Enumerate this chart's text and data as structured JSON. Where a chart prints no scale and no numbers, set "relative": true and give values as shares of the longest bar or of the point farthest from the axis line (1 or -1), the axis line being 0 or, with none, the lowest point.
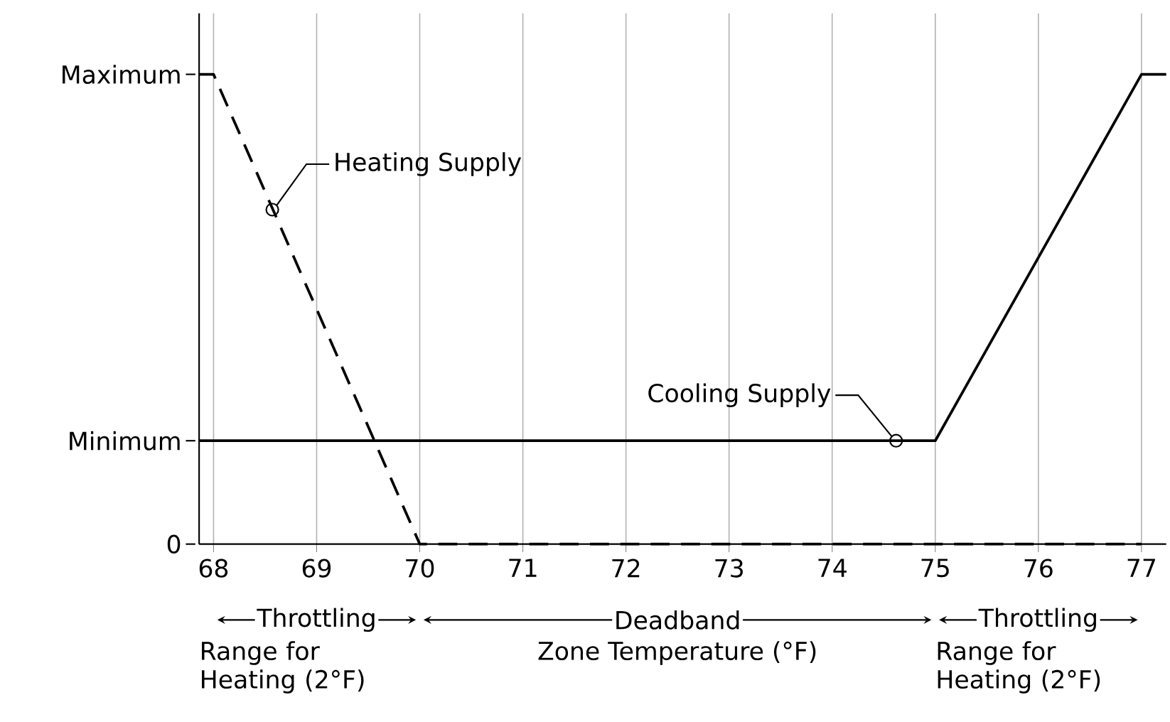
{
  "chart_data": {
    "type": "line",
    "relative": true,
    "xlabel": "Zone Temperature (°F)",
    "series": [
      {
        "color": "#000000",
        "line_style": "dashed",
        "x": [
          67.86,
          68,
          70,
          77
        ],
        "values": [
          1,
          1,
          0,
          0
        ]
      },
      {
        "color": "#000000",
        "line_style": "solid",
        "x": [
          67.86,
          75,
          77,
          77.24
        ],
        "values": [
          0.22,
          0.22,
          1,
          1
        ]
      }
    ],
    "xlim": [
      67.86,
      77.24
    ],
    "xticks": [
      68,
      69,
      70,
      71,
      72,
      73,
      74,
      75,
      76,
      77
    ],
    "grid": "x",
    "marker": "none",
    "ref_lines": [
      {
        "axis": "y",
        "value": 1,
        "label": "Maximum"
      },
      {
        "axis": "y",
        "value": 0.22,
        "label": "Minimum"
      },
      {
        "axis": "y",
        "value": 0,
        "label": "0"
      }
    ],
    "annotations": [
      {
        "text": "Heating Supply",
        "x": 68.57,
        "y": 0.712
      },
      {
        "text": "Cooling Supply",
        "x": 74.62,
        "y": 0.22
      },
      "Throttling",
      "Deadband",
      "Throttling",
      "Range for Heating (2°F)",
      "Range for Heating (2°F)"
    ]
  }
}
